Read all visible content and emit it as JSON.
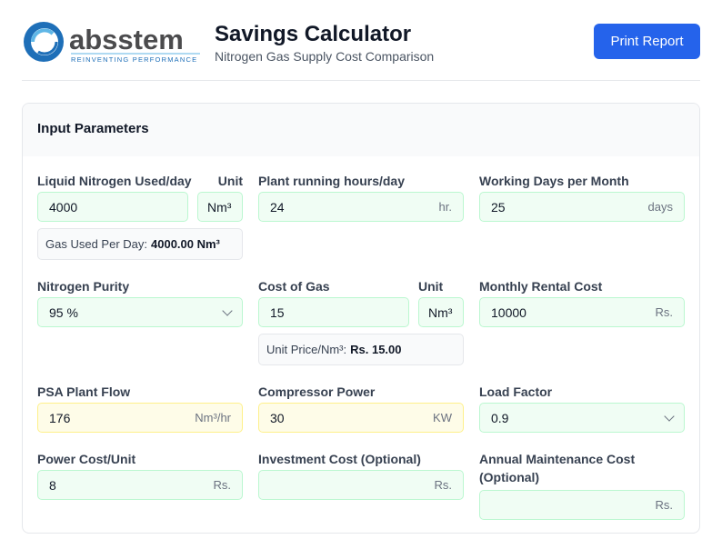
{
  "header": {
    "logo_text": "absstem",
    "logo_tagline": "REINVENTING PERFORMANCE",
    "title": "Savings Calculator",
    "subtitle": "Nitrogen Gas Supply Cost Comparison",
    "print_label": "Print Report"
  },
  "colors": {
    "accent": "#2563eb",
    "input_green": "#f0fdf4",
    "input_yellow": "#fefce8",
    "logo_blue": "#1e6fb8"
  },
  "card": {
    "title": "Input Parameters"
  },
  "fields": {
    "liquid": {
      "label": "Liquid Nitrogen Used/day",
      "value": "4000",
      "unit_label": "Unit",
      "unit_value": "Nm³",
      "info_label": "Gas Used Per Day:",
      "info_value": "4000.00 Nm³"
    },
    "hours": {
      "label": "Plant running hours/day",
      "value": "24",
      "suffix": "hr."
    },
    "days": {
      "label": "Working Days per Month",
      "value": "25",
      "suffix": "days"
    },
    "purity": {
      "label": "Nitrogen Purity",
      "value": "95 %"
    },
    "gas_cost": {
      "label": "Cost of Gas",
      "value": "15",
      "unit_label": "Unit",
      "unit_value": "Nm³",
      "info_label": "Unit Price/Nm³:",
      "info_value": "Rs. 15.00"
    },
    "rental": {
      "label": "Monthly Rental Cost",
      "value": "10000",
      "suffix": "Rs."
    },
    "psa": {
      "label": "PSA Plant Flow",
      "value": "176",
      "suffix": "Nm³/hr"
    },
    "compressor": {
      "label": "Compressor Power",
      "value": "30",
      "suffix": "KW"
    },
    "load": {
      "label": "Load Factor",
      "value": "0.9"
    },
    "power_cost": {
      "label": "Power Cost/Unit",
      "value": "8",
      "suffix": "Rs."
    },
    "investment": {
      "label": "Investment Cost (Optional)",
      "value": "",
      "suffix": "Rs."
    },
    "maintenance": {
      "label": "Annual Maintenance Cost (Optional)",
      "value": "",
      "suffix": "Rs."
    }
  }
}
